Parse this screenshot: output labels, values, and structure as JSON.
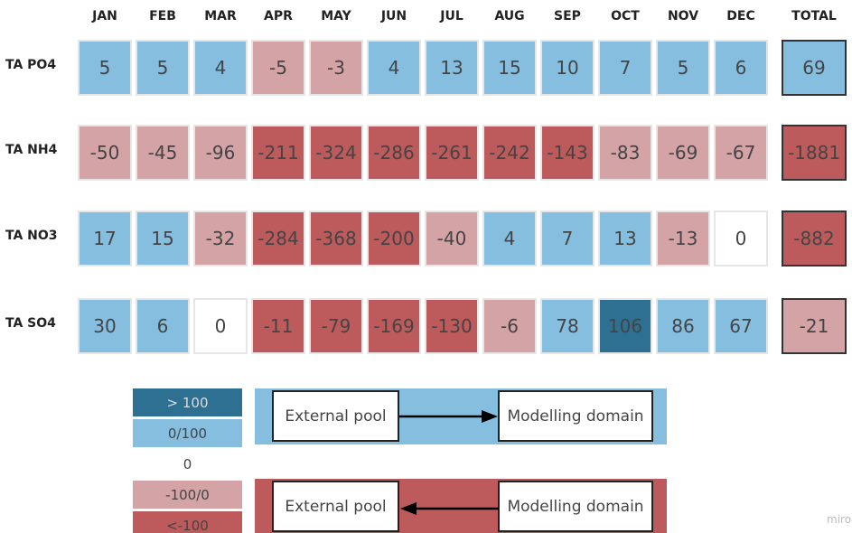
{
  "table": {
    "columns": [
      "JAN",
      "FEB",
      "MAR",
      "APR",
      "MAY",
      "JUN",
      "JUL",
      "AUG",
      "SEP",
      "OCT",
      "NOV",
      "DEC",
      "TOTAL"
    ],
    "rows": [
      {
        "label": "TA PO4",
        "values": [
          5,
          5,
          4,
          -5,
          -3,
          4,
          13,
          15,
          10,
          7,
          5,
          6,
          69
        ],
        "colors": [
          "#86bedf",
          "#86bedf",
          "#86bedf",
          "#d4a3a5",
          "#d4a3a5",
          "#86bedf",
          "#86bedf",
          "#86bedf",
          "#86bedf",
          "#86bedf",
          "#86bedf",
          "#86bedf",
          "#86bedf"
        ]
      },
      {
        "label": "TA NH4",
        "values": [
          -50,
          -45,
          -96,
          -211,
          -324,
          -286,
          -261,
          -242,
          -143,
          -83,
          -69,
          -67,
          -1881
        ],
        "colors": [
          "#d4a3a5",
          "#d4a3a5",
          "#d4a3a5",
          "#bd5a5b",
          "#bd5a5b",
          "#bd5a5b",
          "#bd5a5b",
          "#bd5a5b",
          "#bd5a5b",
          "#d4a3a5",
          "#d4a3a5",
          "#d4a3a5",
          "#bd5a5b"
        ]
      },
      {
        "label": "TA NO3",
        "values": [
          17,
          15,
          -32,
          -284,
          -368,
          -200,
          -40,
          4,
          7,
          13,
          -13,
          0,
          -882
        ],
        "colors": [
          "#86bedf",
          "#86bedf",
          "#d4a3a5",
          "#bd5a5b",
          "#bd5a5b",
          "#bd5a5b",
          "#d4a3a5",
          "#86bedf",
          "#86bedf",
          "#86bedf",
          "#d4a3a5",
          "#ffffff",
          "#bd5a5b"
        ]
      },
      {
        "label": "TA SO4",
        "values": [
          30,
          6,
          0,
          -11,
          -79,
          -169,
          -130,
          -6,
          78,
          106,
          86,
          67,
          -21
        ],
        "colors": [
          "#86bedf",
          "#86bedf",
          "#ffffff",
          "#bd5a5b",
          "#bd5a5b",
          "#bd5a5b",
          "#bd5a5b",
          "#d4a3a5",
          "#86bedf",
          "#2e7092",
          "#86bedf",
          "#86bedf",
          "#d4a3a5"
        ]
      }
    ]
  },
  "legend": [
    {
      "label": "> 100",
      "color": "#2e7092"
    },
    {
      "label": "0/100",
      "color": "#86bedf"
    },
    {
      "label": "0",
      "color": "#ffffff"
    },
    {
      "label": "-100/0",
      "color": "#d4a3a5"
    },
    {
      "label": "<-100",
      "color": "#bd5a5b"
    }
  ],
  "flows": [
    {
      "from": "External pool",
      "to": "Modelling domain",
      "color": "#86bedf"
    },
    {
      "from": "External pool",
      "to": "Modelling domain",
      "color": "#bd5a5b"
    }
  ],
  "watermark": "miro"
}
